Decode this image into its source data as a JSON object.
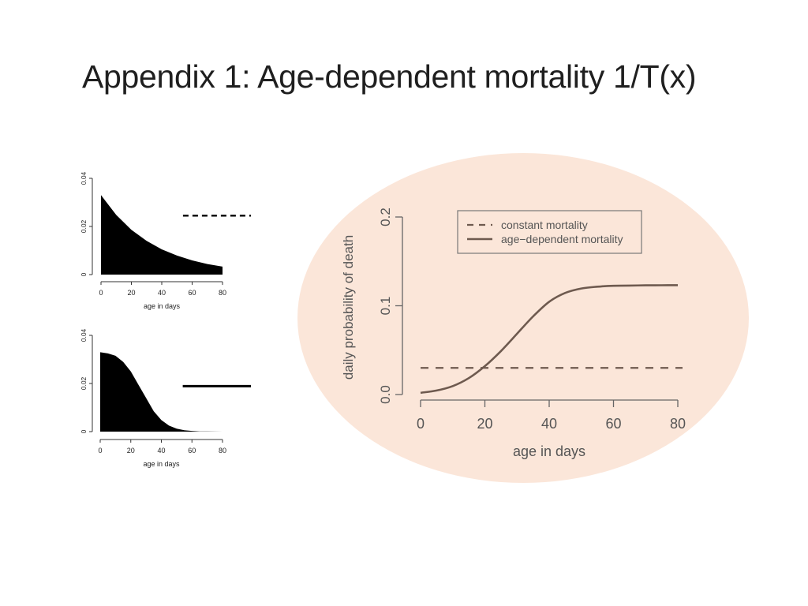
{
  "slide": {
    "title": "Appendix 1: Age-dependent mortality 1/T(x)"
  },
  "colors": {
    "ellipse": "#fbe6d9",
    "main_line": "#6e5a4f",
    "axis": "#555555",
    "small_fill": "#000000"
  },
  "chart_data": [
    {
      "id": "small-top",
      "type": "area",
      "xlabel": "age in days",
      "ylabel": "",
      "xticks": [
        "0",
        "20",
        "40",
        "60",
        "80"
      ],
      "yticks": [
        "0",
        "0.02",
        "0.04"
      ],
      "xlim": [
        0,
        80
      ],
      "ylim": [
        0,
        0.04
      ],
      "series": [
        {
          "style": "filled-area",
          "x": [
            0,
            10,
            20,
            30,
            40,
            50,
            60,
            70,
            80
          ],
          "y": [
            0.033,
            0.0248,
            0.0186,
            0.014,
            0.0105,
            0.0079,
            0.0059,
            0.0044,
            0.0033
          ]
        },
        {
          "style": "dashed",
          "x": [
            54,
            100
          ],
          "y": [
            0.0245,
            0.0245
          ]
        }
      ]
    },
    {
      "id": "small-bottom",
      "type": "area",
      "xlabel": "age in days",
      "ylabel": "",
      "xticks": [
        "0",
        "20",
        "40",
        "60",
        "80"
      ],
      "yticks": [
        "0",
        "0.02",
        "0.04"
      ],
      "xlim": [
        0,
        80
      ],
      "ylim": [
        0,
        0.04
      ],
      "series": [
        {
          "style": "filled-area",
          "x": [
            0,
            5,
            10,
            15,
            20,
            25,
            30,
            35,
            40,
            45,
            50,
            55,
            60,
            65,
            70,
            75,
            80
          ],
          "y": [
            0.033,
            0.0325,
            0.0315,
            0.029,
            0.025,
            0.0195,
            0.014,
            0.0085,
            0.0048,
            0.0025,
            0.0012,
            0.0006,
            0.0003,
            0.0001,
            5e-05,
            2e-05,
            0.0
          ]
        },
        {
          "style": "solid",
          "x": [
            54,
            100
          ],
          "y": [
            0.0189,
            0.0189
          ]
        }
      ]
    },
    {
      "id": "main",
      "type": "line",
      "xlabel": "age in days",
      "ylabel": "daily probability of death",
      "xticks": [
        "0",
        "20",
        "40",
        "60",
        "80"
      ],
      "yticks": [
        "0.0",
        "0.1",
        "0.2"
      ],
      "xlim": [
        0,
        80
      ],
      "ylim": [
        0,
        0.2
      ],
      "grid": false,
      "legend_position": "top-right",
      "series": [
        {
          "name": "constant mortality",
          "style": "dashed",
          "x": [
            0,
            80
          ],
          "y": [
            0.03,
            0.03
          ]
        },
        {
          "name": "age−dependent mortality",
          "style": "solid",
          "x": [
            0,
            5,
            10,
            15,
            20,
            25,
            30,
            35,
            40,
            45,
            50,
            55,
            60,
            65,
            70,
            75,
            80
          ],
          "y": [
            0.002,
            0.0045,
            0.0095,
            0.0185,
            0.032,
            0.049,
            0.0685,
            0.088,
            0.1045,
            0.1145,
            0.1195,
            0.1215,
            0.1225,
            0.1228,
            0.123,
            0.1231,
            0.1232
          ]
        }
      ]
    }
  ]
}
